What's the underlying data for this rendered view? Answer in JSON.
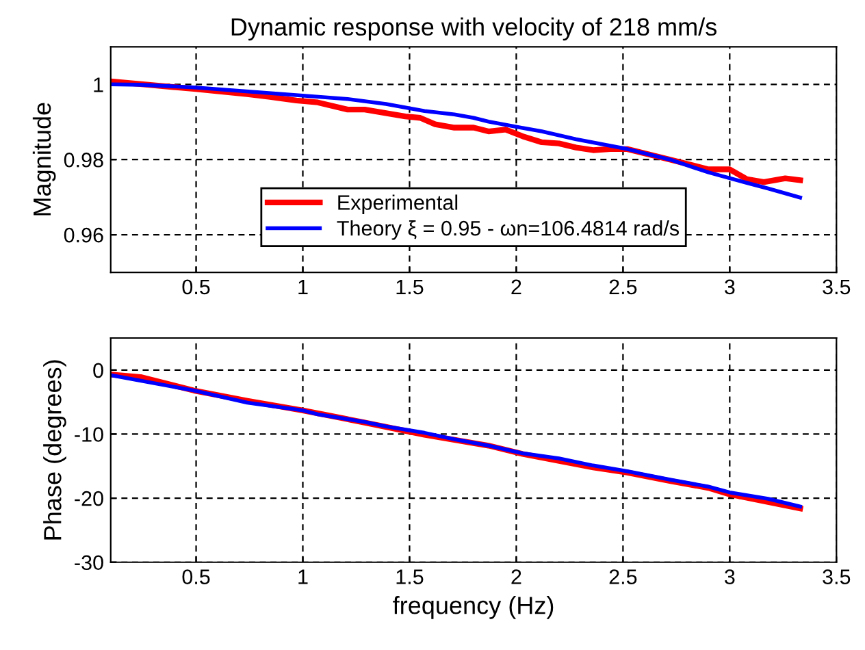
{
  "chart_data": [
    {
      "type": "line",
      "title": "Dynamic response with velocity of 218 mm/s",
      "ylabel": "Magnitude",
      "xlim": [
        0.1,
        3.5
      ],
      "xticks": [
        0.5,
        1,
        1.5,
        2,
        2.5,
        3,
        3.5
      ],
      "ylim": [
        0.95,
        1.01
      ],
      "yticks": [
        0.96,
        0.98,
        1
      ],
      "grid": true,
      "legend": "bottom",
      "line_style": "solid",
      "marker": "none",
      "series": [
        {
          "name": "Experimental",
          "color": "#ff0000",
          "x": [
            0.1,
            0.49,
            0.74,
            0.84,
            0.97,
            1.07,
            1.21,
            1.29,
            1.48,
            1.55,
            1.62,
            1.71,
            1.8,
            1.87,
            1.95,
            2.03,
            2.12,
            2.2,
            2.28,
            2.36,
            2.44,
            2.52,
            2.72,
            2.9,
            3.0,
            3.08,
            3.16,
            3.26,
            3.33
          ],
          "values": [
            1.0008,
            0.9988,
            0.9974,
            0.9967,
            0.9957,
            0.9952,
            0.9933,
            0.9933,
            0.9915,
            0.9911,
            0.9894,
            0.9885,
            0.9885,
            0.9875,
            0.988,
            0.9862,
            0.9846,
            0.9843,
            0.9832,
            0.9825,
            0.9828,
            0.9828,
            0.98,
            0.9774,
            0.9774,
            0.9748,
            0.974,
            0.975,
            0.9745
          ]
        },
        {
          "name": "Theory ξ = 0.95 - ωn=106.4814 rad/s",
          "color": "#0000ff",
          "x": [
            0.1,
            0.24,
            0.49,
            1.0,
            1.21,
            1.39,
            1.57,
            1.71,
            1.8,
            1.87,
            2.03,
            2.12,
            2.28,
            2.52,
            2.72,
            2.9,
            3.08,
            3.18,
            3.33
          ],
          "values": [
            1.0,
            0.9999,
            0.9992,
            0.997,
            0.9961,
            0.9948,
            0.9929,
            0.992,
            0.9911,
            0.9901,
            0.9884,
            0.9875,
            0.9854,
            0.9828,
            0.98,
            0.9766,
            0.9738,
            0.9723,
            0.9699
          ]
        }
      ]
    },
    {
      "type": "line",
      "xlabel": "frequency (Hz)",
      "ylabel": "Phase (degrees)",
      "xlim": [
        0.1,
        3.5
      ],
      "xticks": [
        0.5,
        1,
        1.5,
        2,
        2.5,
        3,
        3.5
      ],
      "ylim": [
        -30,
        5
      ],
      "yticks": [
        -30,
        -20,
        -10,
        0
      ],
      "grid": true,
      "line_style": "solid",
      "marker": "none",
      "series": [
        {
          "color": "#ff0000",
          "x": [
            0.1,
            0.24,
            0.49,
            0.74,
            1.0,
            1.29,
            1.57,
            1.87,
            2.03,
            2.36,
            2.52,
            2.72,
            2.9,
            3.0,
            3.33
          ],
          "values": [
            -0.7,
            -1.1,
            -3.2,
            -4.8,
            -6.3,
            -8.2,
            -10.1,
            -11.8,
            -13.1,
            -15.2,
            -16.0,
            -17.3,
            -18.4,
            -19.4,
            -21.6
          ]
        },
        {
          "color": "#0000ff",
          "x": [
            0.1,
            0.49,
            0.74,
            1.0,
            1.07,
            1.29,
            1.39,
            1.57,
            1.71,
            1.87,
            2.03,
            2.2,
            2.36,
            2.52,
            2.72,
            2.9,
            3.0,
            3.18,
            3.33
          ],
          "values": [
            -0.8,
            -3.2,
            -5.1,
            -6.3,
            -6.9,
            -8.1,
            -8.8,
            -9.8,
            -10.8,
            -11.8,
            -13.0,
            -13.8,
            -14.9,
            -15.8,
            -17.1,
            -18.2,
            -19.1,
            -20.1,
            -21.3
          ]
        }
      ]
    }
  ]
}
